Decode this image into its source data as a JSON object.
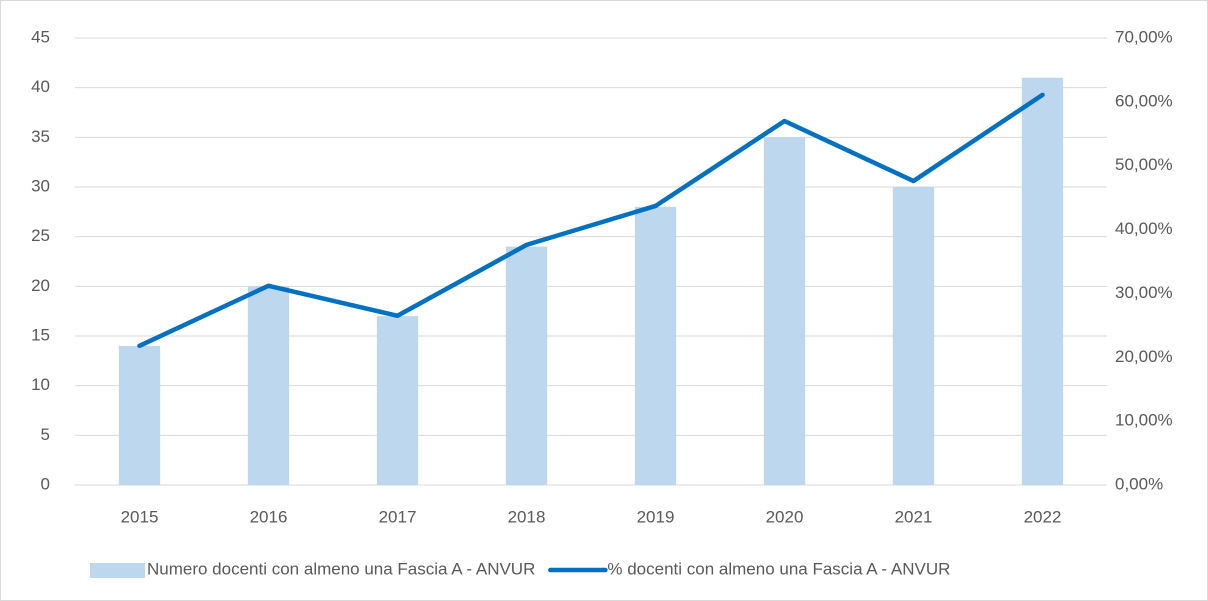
{
  "chart_data": {
    "type": "combo",
    "categories": [
      "2015",
      "2016",
      "2017",
      "2018",
      "2019",
      "2020",
      "2021",
      "2022"
    ],
    "series": [
      {
        "name": "Numero docenti con almeno una Fascia A - ANVUR",
        "type": "bar",
        "color": "#bdd7ee",
        "values": [
          14,
          20,
          17,
          24,
          28,
          35,
          30,
          41
        ]
      },
      {
        "name": "% docenti con almeno una Fascia A - ANVUR",
        "type": "line",
        "axis": "y2",
        "color": "#0070c0",
        "values": [
          21.8,
          31.2,
          26.5,
          37.6,
          43.7,
          57.0,
          47.6,
          61.1
        ]
      }
    ],
    "ylim": [
      0,
      45
    ],
    "yticks": [
      0,
      5,
      10,
      15,
      20,
      25,
      30,
      35,
      40,
      45
    ],
    "y2lim": [
      0,
      70
    ],
    "y2ticks": [
      {
        "value": 0,
        "label": "0,00%"
      },
      {
        "value": 10,
        "label": "10,00%"
      },
      {
        "value": 20,
        "label": "20,00%"
      },
      {
        "value": 30,
        "label": "30,00%"
      },
      {
        "value": 40,
        "label": "40,00%"
      },
      {
        "value": 50,
        "label": "50,00%"
      },
      {
        "value": 60,
        "label": "60,00%"
      },
      {
        "value": 70,
        "label": "70,00%"
      }
    ],
    "grid": true,
    "legend": "bottom"
  }
}
